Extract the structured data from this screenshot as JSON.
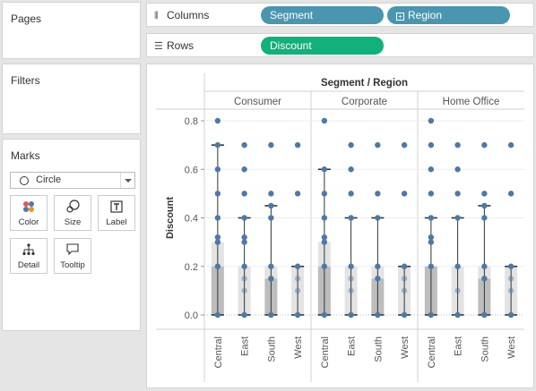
{
  "pages": {
    "title": "Pages"
  },
  "filters": {
    "title": "Filters"
  },
  "marks": {
    "title": "Marks",
    "mark_type": "Circle",
    "buttons": [
      {
        "label": "Color",
        "icon": "color-dots-icon"
      },
      {
        "label": "Size",
        "icon": "size-icon"
      },
      {
        "label": "Label",
        "icon": "label-icon"
      },
      {
        "label": "Detail",
        "icon": "detail-icon"
      },
      {
        "label": "Tooltip",
        "icon": "tooltip-icon"
      }
    ]
  },
  "shelves": {
    "columns": {
      "label": "Columns",
      "pills": [
        "Segment",
        "Region"
      ]
    },
    "rows": {
      "label": "Rows",
      "pills": [
        "Discount"
      ]
    }
  },
  "colors": {
    "columns_pill": "#4a96b0",
    "rows_pill": "#12b07a",
    "dot": "#4e79a7",
    "box_dark": "#bdbdbd",
    "box_light": "#e3e3e3"
  },
  "chart_data": {
    "type": "scatter",
    "title": "Segment / Region",
    "ylabel": "Discount",
    "ylim": [
      0,
      0.8
    ],
    "yticks": [
      "0.0",
      "0.2",
      "0.4",
      "0.6",
      "0.8"
    ],
    "segments": [
      "Consumer",
      "Corporate",
      "Home Office"
    ],
    "regions": [
      "Central",
      "East",
      "South",
      "West"
    ],
    "panels": [
      {
        "segment": "Consumer",
        "region": "Central",
        "points": [
          0,
          0.2,
          0.3,
          0.32,
          0.4,
          0.5,
          0.6,
          0.7,
          0.8
        ],
        "q1": 0,
        "median": 0.2,
        "q3": 0.3,
        "whisker_low": 0,
        "whisker_high": 0.7
      },
      {
        "segment": "Consumer",
        "region": "East",
        "points": [
          0,
          0.1,
          0.15,
          0.2,
          0.3,
          0.32,
          0.4,
          0.5,
          0.6,
          0.7
        ],
        "q1": 0,
        "median": 0,
        "q3": 0.2,
        "whisker_low": 0,
        "whisker_high": 0.4
      },
      {
        "segment": "Consumer",
        "region": "South",
        "points": [
          0,
          0.15,
          0.2,
          0.4,
          0.45,
          0.5,
          0.7
        ],
        "q1": 0,
        "median": 0.15,
        "q3": 0.2,
        "whisker_low": 0,
        "whisker_high": 0.45
      },
      {
        "segment": "Consumer",
        "region": "West",
        "points": [
          0,
          0.1,
          0.15,
          0.2,
          0.5,
          0.7
        ],
        "q1": 0,
        "median": 0,
        "q3": 0.2,
        "whisker_low": 0,
        "whisker_high": 0.2
      },
      {
        "segment": "Corporate",
        "region": "Central",
        "points": [
          0,
          0.2,
          0.3,
          0.32,
          0.4,
          0.5,
          0.6,
          0.8
        ],
        "q1": 0,
        "median": 0.2,
        "q3": 0.3,
        "whisker_low": 0,
        "whisker_high": 0.6
      },
      {
        "segment": "Corporate",
        "region": "East",
        "points": [
          0,
          0.1,
          0.15,
          0.2,
          0.4,
          0.5,
          0.6,
          0.7
        ],
        "q1": 0,
        "median": 0,
        "q3": 0.2,
        "whisker_low": 0,
        "whisker_high": 0.4
      },
      {
        "segment": "Corporate",
        "region": "South",
        "points": [
          0,
          0.15,
          0.2,
          0.4,
          0.5,
          0.7
        ],
        "q1": 0,
        "median": 0.15,
        "q3": 0.2,
        "whisker_low": 0,
        "whisker_high": 0.4
      },
      {
        "segment": "Corporate",
        "region": "West",
        "points": [
          0,
          0.1,
          0.15,
          0.2,
          0.5,
          0.7
        ],
        "q1": 0,
        "median": 0,
        "q3": 0.2,
        "whisker_low": 0,
        "whisker_high": 0.2
      },
      {
        "segment": "Home Office",
        "region": "Central",
        "points": [
          0,
          0.2,
          0.3,
          0.32,
          0.4,
          0.5,
          0.6,
          0.7,
          0.8
        ],
        "q1": 0,
        "median": 0.2,
        "q3": 0.2,
        "whisker_low": 0,
        "whisker_high": 0.4
      },
      {
        "segment": "Home Office",
        "region": "East",
        "points": [
          0,
          0.1,
          0.2,
          0.4,
          0.5,
          0.6,
          0.7
        ],
        "q1": 0,
        "median": 0,
        "q3": 0.2,
        "whisker_low": 0,
        "whisker_high": 0.4
      },
      {
        "segment": "Home Office",
        "region": "South",
        "points": [
          0,
          0.15,
          0.2,
          0.4,
          0.45,
          0.5,
          0.7
        ],
        "q1": 0,
        "median": 0.15,
        "q3": 0.2,
        "whisker_low": 0,
        "whisker_high": 0.45
      },
      {
        "segment": "Home Office",
        "region": "West",
        "points": [
          0,
          0.1,
          0.15,
          0.2,
          0.5,
          0.7
        ],
        "q1": 0,
        "median": 0,
        "q3": 0.2,
        "whisker_low": 0,
        "whisker_high": 0.2
      }
    ]
  }
}
